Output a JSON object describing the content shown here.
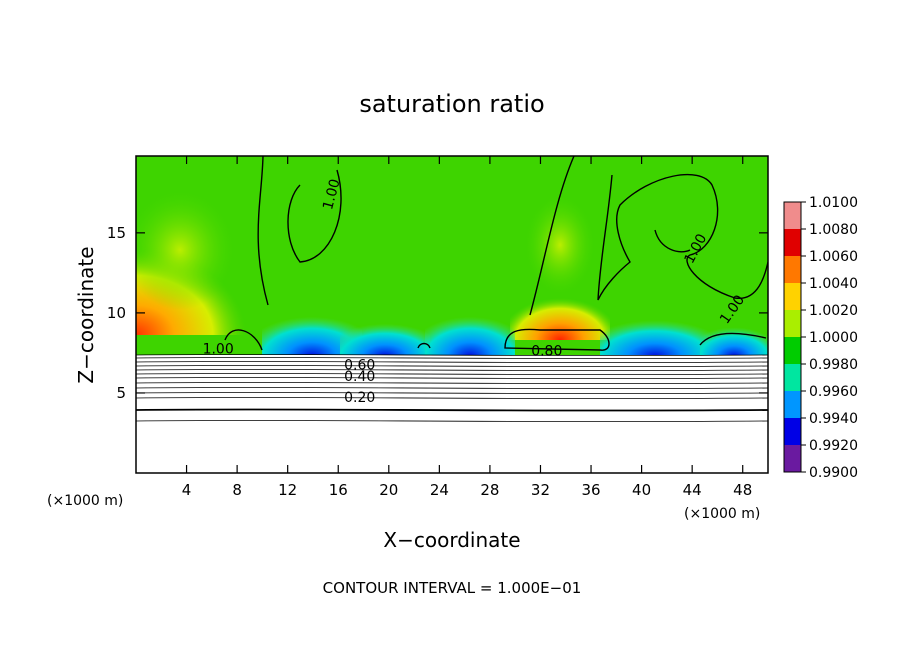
{
  "chart_data": {
    "type": "heatmap",
    "title": "saturation ratio",
    "xlabel": "X−coordinate",
    "ylabel": "Z−coordinate",
    "x_unit_label": "(×1000 m)",
    "z_unit_label": "(×1000 m)",
    "xlim": [
      0,
      50
    ],
    "ylim": [
      0,
      19.8
    ],
    "x_ticks": [
      4,
      8,
      12,
      16,
      20,
      24,
      28,
      32,
      36,
      40,
      44,
      48
    ],
    "y_ticks": [
      5,
      10,
      15
    ],
    "contour_interval_text": "CONTOUR INTERVAL = 1.000E−01",
    "contour_labels": [
      {
        "text": "1.00",
        "x": 15.5,
        "z": 17.4,
        "angle": -75
      },
      {
        "text": "1.00",
        "x": 44.3,
        "z": 14.0,
        "angle": -62
      },
      {
        "text": "1.00",
        "x": 47.2,
        "z": 10.2,
        "angle": -55
      },
      {
        "text": "1.00",
        "x": 6.5,
        "z": 7.7,
        "angle": 0
      },
      {
        "text": "0.60",
        "x": 17.7,
        "z": 6.7,
        "angle": 0
      },
      {
        "text": "0.40",
        "x": 17.7,
        "z": 6.0,
        "angle": 0
      },
      {
        "text": "0.20",
        "x": 17.7,
        "z": 4.7,
        "angle": 0
      },
      {
        "text": "0.80",
        "x": 32.5,
        "z": 7.6,
        "angle": 0
      }
    ],
    "colorbar": {
      "levels": [
        "1.0100",
        "1.0080",
        "1.0060",
        "1.0040",
        "1.0020",
        "1.0000",
        "0.9980",
        "0.9960",
        "0.9940",
        "0.9920",
        "0.9900"
      ],
      "colors": [
        "#f08c8c",
        "#e00000",
        "#ff7800",
        "#ffd200",
        "#aaee00",
        "#00cc00",
        "#00e6a0",
        "#0096ff",
        "#0000e6",
        "#6a1aa0"
      ]
    }
  }
}
